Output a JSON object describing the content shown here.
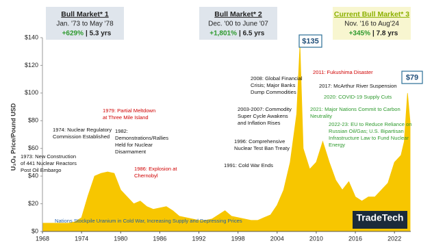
{
  "chart_data": {
    "type": "area",
    "y_label": "U₃O₈ Price/Pound USD",
    "color": "#f7c600",
    "x": [
      1968,
      1969,
      1970,
      1971,
      1972,
      1973,
      1974,
      1975,
      1976,
      1977,
      1978,
      1979,
      1980,
      1981,
      1982,
      1983,
      1984,
      1985,
      1986,
      1987,
      1988,
      1989,
      1990,
      1991,
      1992,
      1993,
      1994,
      1995,
      1996,
      1997,
      1998,
      1999,
      2000,
      2001,
      2002,
      2003,
      2004,
      2005,
      2006,
      2007,
      2007.5,
      2008,
      2009,
      2010,
      2011,
      2012,
      2013,
      2014,
      2015,
      2016,
      2017,
      2018,
      2019,
      2020,
      2021,
      2022,
      2023,
      2023.5,
      2024,
      2024.4
    ],
    "values": [
      6,
      6,
      6,
      6,
      6,
      7,
      10,
      26,
      40,
      42,
      43,
      42,
      30,
      25,
      20,
      22,
      18,
      16,
      17,
      18,
      15,
      11,
      10,
      9,
      8,
      8,
      9,
      12,
      15,
      11,
      10,
      9,
      8,
      8,
      10,
      12,
      19,
      30,
      50,
      85,
      135,
      60,
      45,
      50,
      65,
      50,
      37,
      30,
      36,
      25,
      22,
      25,
      25,
      30,
      35,
      50,
      55,
      65,
      100,
      79
    ],
    "xlim": [
      1968,
      2024.5
    ],
    "ylim": [
      0,
      140
    ],
    "xticks": [
      1968,
      1974,
      1980,
      1986,
      1992,
      1998,
      2004,
      2010,
      2016,
      2022
    ],
    "yticks": [
      {
        "value": 0,
        "label": "$0"
      },
      {
        "value": 20,
        "label": "$20"
      },
      {
        "value": 40,
        "label": "$40"
      },
      {
        "value": 60,
        "label": "$60"
      },
      {
        "value": 80,
        "label": "$80"
      },
      {
        "value": 100,
        "label": "$100"
      },
      {
        "value": 120,
        "label": "$120"
      },
      {
        "value": 140,
        "label": "$140"
      }
    ],
    "grid": false,
    "callouts": [
      {
        "label": "$135"
      },
      {
        "label": "$79"
      }
    ],
    "bull_markets": [
      {
        "title": "Bull Market* 1",
        "period": "Jan. '73 to May '78",
        "gain": "+629%",
        "duration": "| 5.3 yrs"
      },
      {
        "title": "Bull Market* 2",
        "period": "Dec. '00 to June '07",
        "gain": "+1,801%",
        "duration": "| 6.5 yrs"
      },
      {
        "title": "Current Bull Market* 3",
        "period": "Nov. '16 to Aug'24",
        "gain": "+345%",
        "duration": "| 7.8 yrs"
      }
    ],
    "annotations": [
      {
        "color": "#111",
        "lines": [
          "1973: New Construction",
          "of 441 Nuclear Reactors",
          "Post Oil Embargo"
        ]
      },
      {
        "color": "#111",
        "lines": [
          "1974: Nuclear Regulatory",
          "Commission Established"
        ]
      },
      {
        "color": "#d00000",
        "lines": [
          "1979: Partial Meltdown",
          "at Three Mile Island"
        ]
      },
      {
        "color": "#111",
        "lines": [
          "1982:",
          "Demonstrations/Rallies",
          "Held for Nuclear",
          "Disarmament"
        ]
      },
      {
        "color": "#d00000",
        "lines": [
          "1986: Explosion at",
          "Chernobyl"
        ]
      },
      {
        "color": "#111",
        "lines": [
          "1991: Cold War Ends"
        ]
      },
      {
        "color": "#111",
        "lines": [
          "1996: Comprehensive",
          "Nuclear Test Ban Treaty"
        ]
      },
      {
        "color": "#111",
        "lines": [
          "2003-2007: Commodity",
          "Super Cycle Awakens",
          "and Inflation Rises"
        ]
      },
      {
        "color": "#111",
        "lines": [
          "2008: Global Financial",
          "Crisis; Major Banks",
          "Dump Commodities"
        ]
      },
      {
        "color": "#d00000",
        "lines": [
          "2011: Fukushima Disaster"
        ]
      },
      {
        "color": "#111",
        "lines": [
          "2017: McArthur River Suspension"
        ]
      },
      {
        "color": "#2e9a2e",
        "lines": [
          "2020: COVID-19 Supply Cuts"
        ]
      },
      {
        "color": "#2e9a2e",
        "lines": [
          "2021: Major Nations Commit to Carbon",
          "Neutrality"
        ]
      },
      {
        "color": "#2e9a2e",
        "lines": [
          "2022-23: EU to Reduce Reliance on",
          "Russian Oil/Gas; U.S. Bipartisan",
          "Infrastructure Law to Fund Nuclear",
          "Energy"
        ]
      },
      {
        "color": "#1f5fa8",
        "lines": [
          "Nations Stockpile Uranium in Cold War, Increasing Supply and Depressing Prices"
        ]
      }
    ],
    "logo": "TradeTech"
  }
}
